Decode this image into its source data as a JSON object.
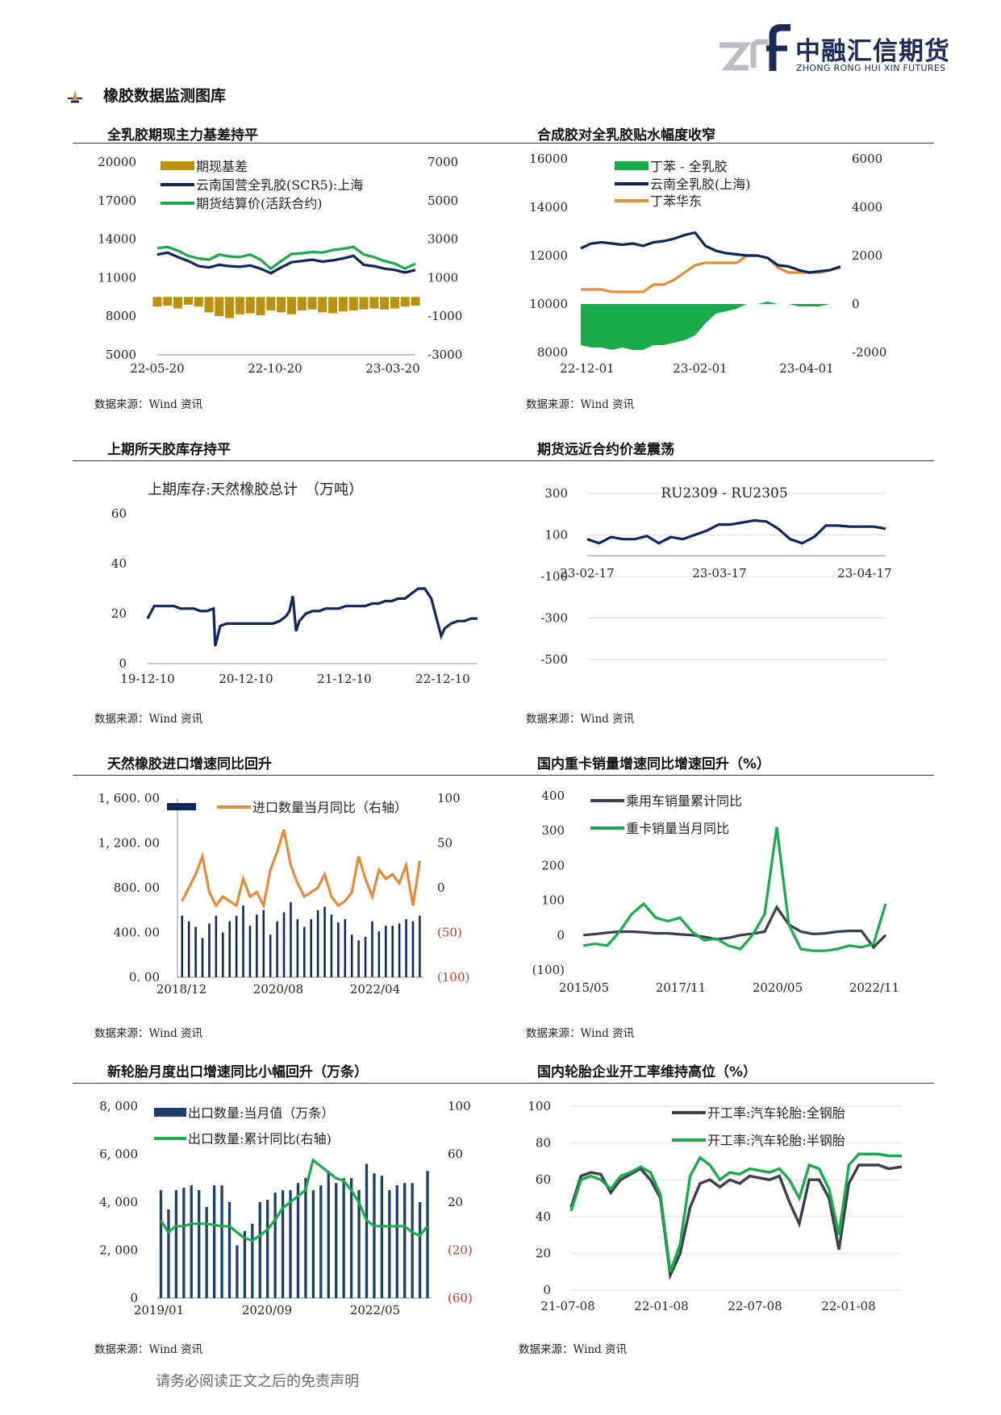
{
  "logo": {
    "cn": "中融汇信期货",
    "en": "ZHONG RONG HUI XIN FUTURES"
  },
  "section": {
    "title": "橡胶数据监测图库"
  },
  "footer": {
    "disclaimer": "请务必阅读正文之后的免责声明"
  },
  "colors": {
    "navy": "#10255a",
    "green": "#1aaa4a",
    "gold": "#b99010",
    "orange": "#e38a3a",
    "red": "#c0392b",
    "gray": "#3a3f4a",
    "bar_navy": "#1f3f6b"
  },
  "panels": [
    {
      "id": "p1",
      "title": "全乳胶期现主力基差持平",
      "source": "数据来源：Wind 资讯"
    },
    {
      "id": "p2",
      "title": "合成胶对全乳胶贴水幅度收窄",
      "source": "数据来源：Wind 资讯"
    },
    {
      "id": "p3",
      "title": "上期所天胶库存持平",
      "source": "数据来源：Wind 资讯"
    },
    {
      "id": "p4",
      "title": "期货远近合约价差震荡",
      "source": "数据来源：Wind 资讯"
    },
    {
      "id": "p5",
      "title": "天然橡胶进口增速同比回升",
      "source": "数据来源：Wind 资讯"
    },
    {
      "id": "p6",
      "title": "国内重卡销量增速同比增速回升（%）",
      "source": "数据来源：Wind 资讯"
    },
    {
      "id": "p7",
      "title": "新轮胎月度出口增速同比小幅回升（万条）",
      "source": "数据来源：Wind 资讯"
    },
    {
      "id": "p8",
      "title": "国内轮胎企业开工率维持高位（%）",
      "source": "数据来源：Wind 资讯"
    }
  ],
  "chart_data": [
    {
      "id": "p1",
      "type": "line",
      "left_ticks": [
        "20000",
        "17000",
        "14000",
        "11000",
        "8000",
        "5000"
      ],
      "right_ticks": [
        "7000",
        "5000",
        "3000",
        "1000",
        "-1000",
        "-3000"
      ],
      "x_ticks": [
        "22-05-20",
        "22-10-20",
        "23-03-20"
      ],
      "ylim": [
        5000,
        20000
      ],
      "y2lim": [
        -3000,
        7000
      ],
      "legend": [
        "期现基差",
        "云南国营全乳胶(SCR5):上海",
        "期货结算价(活跃合约)"
      ],
      "x": [
        0,
        4,
        8,
        12,
        16,
        20,
        24,
        28,
        32,
        36,
        40,
        44,
        48,
        52,
        56,
        60,
        64,
        68,
        72,
        76,
        80,
        84,
        88,
        92,
        96,
        100
      ],
      "series": [
        {
          "name": "云南国营全乳胶(SCR5):上海",
          "axis": "left",
          "values": [
            12800,
            12950,
            12600,
            12300,
            11900,
            11800,
            12000,
            11900,
            11850,
            11950,
            11700,
            11350,
            11800,
            12200,
            12300,
            12400,
            12250,
            12350,
            12500,
            12700,
            12000,
            11900,
            11700,
            11600,
            11400,
            11600
          ]
        },
        {
          "name": "期货结算价(活跃合约)",
          "axis": "left",
          "values": [
            13300,
            13400,
            13100,
            12700,
            12500,
            12400,
            12800,
            12650,
            12600,
            12800,
            12400,
            11700,
            12300,
            12850,
            12900,
            13000,
            12950,
            13150,
            13250,
            13400,
            12800,
            12600,
            12300,
            12100,
            11700,
            12100
          ]
        },
        {
          "name": "期现基差",
          "axis": "right",
          "values": [
            -500,
            -450,
            -600,
            -400,
            -500,
            -800,
            -1000,
            -1100,
            -900,
            -850,
            -950,
            -700,
            -800,
            -900,
            -700,
            -650,
            -800,
            -850,
            -750,
            -700,
            -650,
            -600,
            -650,
            -600,
            -500,
            -450
          ]
        }
      ]
    },
    {
      "id": "p2",
      "type": "line",
      "left_ticks": [
        "16000",
        "14000",
        "12000",
        "10000",
        "8000"
      ],
      "right_ticks": [
        "6000",
        "4000",
        "2000",
        "0",
        "-2000"
      ],
      "x_ticks": [
        "22-12-01",
        "23-02-01",
        "23-04-01"
      ],
      "ylim": [
        8000,
        16000
      ],
      "y2lim": [
        -2000,
        6000
      ],
      "legend": [
        "丁苯 - 全乳胶",
        "云南全乳胶(上海)",
        "丁苯华东"
      ],
      "x": [
        0,
        4,
        8,
        12,
        16,
        20,
        24,
        28,
        32,
        36,
        40,
        44,
        48,
        52,
        56,
        60,
        64,
        68,
        72,
        76,
        80,
        84,
        88,
        92,
        96,
        100
      ],
      "series": [
        {
          "name": "云南全乳胶(上海)",
          "axis": "left",
          "values": [
            12300,
            12500,
            12550,
            12500,
            12450,
            12500,
            12400,
            12550,
            12600,
            12700,
            12850,
            12950,
            12400,
            12200,
            12100,
            12050,
            12000,
            12000,
            11900,
            11600,
            11550,
            11400,
            11300,
            11350,
            11400,
            11550
          ]
        },
        {
          "name": "丁苯华东",
          "axis": "left",
          "values": [
            10600,
            10600,
            10600,
            10500,
            10500,
            10500,
            10500,
            10800,
            10800,
            11000,
            11300,
            11600,
            11700,
            11700,
            11700,
            11700,
            12000,
            12000,
            11900,
            11500,
            11300,
            11300,
            11300,
            11300,
            11400,
            11500
          ]
        },
        {
          "name": "丁苯 - 全乳胶",
          "axis": "right",
          "values": [
            -1700,
            -1800,
            -1800,
            -1900,
            -1800,
            -1900,
            -1900,
            -1700,
            -1700,
            -1600,
            -1500,
            -1300,
            -800,
            -400,
            -300,
            -200,
            0,
            0,
            100,
            0,
            0,
            -100,
            -100,
            -100,
            0,
            0
          ]
        }
      ]
    },
    {
      "id": "p3",
      "type": "line",
      "y_ticks": [
        "60",
        "40",
        "20",
        "0"
      ],
      "x_ticks": [
        "19-12-10",
        "20-12-10",
        "21-12-10",
        "22-12-10"
      ],
      "ylim": [
        0,
        60
      ],
      "annotation": "上期库存:天然橡胶总计　（万吨）",
      "x": [
        0,
        2,
        4,
        6,
        8,
        10,
        12,
        14,
        16,
        18,
        20,
        20.5,
        22,
        24,
        26,
        28,
        30,
        32,
        34,
        36,
        38,
        40,
        42,
        43,
        44,
        45,
        46,
        48,
        50,
        52,
        54,
        56,
        58,
        60,
        62,
        64,
        66,
        68,
        69,
        70,
        72,
        74,
        76,
        78,
        80,
        82,
        84,
        86,
        88,
        89,
        90,
        92,
        94,
        96,
        98,
        100
      ],
      "series": [
        {
          "name": "上期库存",
          "values": [
            18,
            23,
            23,
            23,
            23,
            22,
            22,
            22,
            21,
            21,
            22,
            7,
            15,
            16,
            16,
            16,
            16,
            16,
            16,
            16,
            16,
            17,
            19,
            21,
            27,
            13,
            17,
            20,
            21,
            21,
            22,
            22,
            22,
            23,
            23,
            23,
            23,
            24,
            24,
            24,
            25,
            25,
            26,
            26,
            28,
            30,
            30,
            26,
            16,
            11,
            14,
            16,
            17,
            17,
            18,
            18
          ]
        }
      ]
    },
    {
      "id": "p4",
      "type": "line",
      "y_ticks": [
        "300",
        "100",
        "-100",
        "-300",
        "-500"
      ],
      "x_ticks": [
        "23-02-17",
        "23-03-17",
        "23-04-17"
      ],
      "ylim": [
        -500,
        300
      ],
      "annotation": "RU2309 - RU2305",
      "x": [
        0,
        4,
        8,
        12,
        16,
        20,
        24,
        28,
        32,
        36,
        40,
        44,
        48,
        52,
        56,
        60,
        64,
        68,
        72,
        76,
        80,
        84,
        88,
        92,
        96,
        100
      ],
      "series": [
        {
          "name": "RU2309 - RU2305",
          "values": [
            80,
            60,
            90,
            80,
            80,
            95,
            60,
            90,
            80,
            100,
            120,
            150,
            150,
            160,
            170,
            165,
            130,
            80,
            60,
            90,
            145,
            145,
            140,
            140,
            140,
            130
          ]
        }
      ]
    },
    {
      "id": "p5",
      "type": "bar+line",
      "left_ticks": [
        "1, 600. 00",
        "1, 200. 00",
        "800. 00",
        "400. 00",
        "0. 00"
      ],
      "right_ticks": [
        "100",
        "50",
        "0",
        "(50)",
        "(100)"
      ],
      "x_ticks": [
        "2018/12",
        "2020/08",
        "2022/04"
      ],
      "ylim": [
        0,
        1600
      ],
      "y2lim": [
        -100,
        100
      ],
      "legend": [
        "",
        "进口数量当月同比（右轴）"
      ],
      "bars": [
        550,
        500,
        450,
        350,
        480,
        550,
        400,
        500,
        550,
        640,
        460,
        560,
        600,
        380,
        500,
        580,
        670,
        520,
        450,
        520,
        600,
        630,
        560,
        490,
        520,
        380,
        330,
        360,
        500,
        410,
        460,
        460,
        480,
        520,
        500,
        550
      ],
      "series": [
        {
          "name": "进口数量当月同比（右轴）",
          "axis": "right",
          "values": [
            -15,
            0,
            15,
            35,
            -5,
            -20,
            -10,
            -15,
            -20,
            10,
            -10,
            -5,
            -20,
            20,
            40,
            65,
            25,
            5,
            -10,
            -5,
            0,
            15,
            -10,
            -20,
            -15,
            -5,
            35,
            10,
            -10,
            20,
            10,
            15,
            5,
            25,
            -20,
            30
          ]
        }
      ]
    },
    {
      "id": "p6",
      "type": "line",
      "y_ticks": [
        "400",
        "300",
        "200",
        "100",
        "0",
        "(100)"
      ],
      "x_ticks": [
        "2015/05",
        "2017/11",
        "2020/05",
        "2022/11"
      ],
      "ylim": [
        -100,
        400
      ],
      "legend": [
        "乘用车销量累计同比",
        "重卡销量当月同比"
      ],
      "x": [
        0,
        4,
        8,
        12,
        16,
        20,
        24,
        28,
        32,
        36,
        40,
        44,
        48,
        52,
        56,
        60,
        64,
        68,
        72,
        76,
        80,
        84,
        88,
        92,
        96,
        100
      ],
      "series": [
        {
          "name": "乘用车销量累计同比",
          "values": [
            0,
            3,
            7,
            10,
            10,
            8,
            5,
            5,
            2,
            0,
            -5,
            -12,
            -8,
            0,
            4,
            10,
            80,
            30,
            10,
            3,
            5,
            10,
            12,
            12,
            -35,
            0
          ]
        },
        {
          "name": "重卡销量当月同比",
          "values": [
            -30,
            -25,
            -30,
            10,
            60,
            90,
            50,
            40,
            50,
            10,
            -15,
            -10,
            -30,
            -40,
            0,
            60,
            310,
            30,
            -40,
            -45,
            -45,
            -40,
            -30,
            -35,
            -25,
            90
          ]
        }
      ]
    },
    {
      "id": "p7",
      "type": "bar+line",
      "left_ticks": [
        "8, 000",
        "6, 000",
        "4, 000",
        "2, 000",
        "0"
      ],
      "right_ticks": [
        "100",
        "60",
        "20",
        "(20)",
        "(60)"
      ],
      "x_ticks": [
        "2019/01",
        "2020/09",
        "2022/05"
      ],
      "ylim": [
        0,
        8000
      ],
      "y2lim": [
        -60,
        100
      ],
      "legend": [
        "出口数量:当月值（万条）",
        "出口数量:累计同比(右轴)"
      ],
      "bars": [
        4500,
        3700,
        4500,
        4600,
        4700,
        4500,
        3800,
        4700,
        4700,
        4000,
        2200,
        2800,
        3100,
        4000,
        4100,
        4400,
        4500,
        4500,
        4800,
        5000,
        4500,
        4700,
        5300,
        4800,
        5000,
        5000,
        4500,
        5600,
        5200,
        5100,
        4500,
        4700,
        4800,
        4800,
        4000,
        5300
      ],
      "series": [
        {
          "name": "出口数量:累计同比(右轴)",
          "axis": "right",
          "values": [
            5,
            -5,
            0,
            0,
            2,
            2,
            2,
            1,
            0,
            0,
            -5,
            -10,
            -12,
            -8,
            -3,
            5,
            15,
            20,
            25,
            30,
            55,
            50,
            45,
            40,
            38,
            30,
            20,
            5,
            0,
            0,
            0,
            0,
            0,
            -5,
            -8,
            0
          ]
        }
      ]
    },
    {
      "id": "p8",
      "type": "line",
      "y_ticks": [
        "100",
        "80",
        "60",
        "40",
        "20",
        "0"
      ],
      "x_ticks": [
        "21-07-08",
        "22-01-08",
        "22-07-08",
        "22-01-08"
      ],
      "ylim": [
        0,
        100
      ],
      "legend": [
        "开工率:汽车轮胎:全钢胎",
        "开工率:汽车轮胎:半钢胎"
      ],
      "x": [
        0,
        3,
        6,
        9,
        12,
        15,
        18,
        21,
        24,
        27,
        30,
        33,
        36,
        39,
        42,
        45,
        48,
        51,
        54,
        57,
        60,
        63,
        66,
        69,
        72,
        75,
        78,
        81,
        84,
        87,
        90,
        93,
        96,
        100
      ],
      "series": [
        {
          "name": "开工率:汽车轮胎:全钢胎",
          "values": [
            45,
            62,
            64,
            63,
            53,
            60,
            63,
            66,
            60,
            50,
            8,
            20,
            45,
            58,
            60,
            56,
            60,
            58,
            62,
            61,
            60,
            62,
            48,
            36,
            60,
            60,
            50,
            22,
            58,
            68,
            68,
            68,
            66,
            67
          ]
        },
        {
          "name": "开工率:汽车轮胎:半钢胎",
          "values": [
            43,
            60,
            62,
            60,
            55,
            62,
            64,
            67,
            64,
            52,
            10,
            25,
            62,
            72,
            68,
            60,
            64,
            63,
            66,
            65,
            64,
            66,
            60,
            50,
            68,
            66,
            55,
            30,
            68,
            74,
            74,
            74,
            73,
            73
          ]
        }
      ]
    }
  ]
}
